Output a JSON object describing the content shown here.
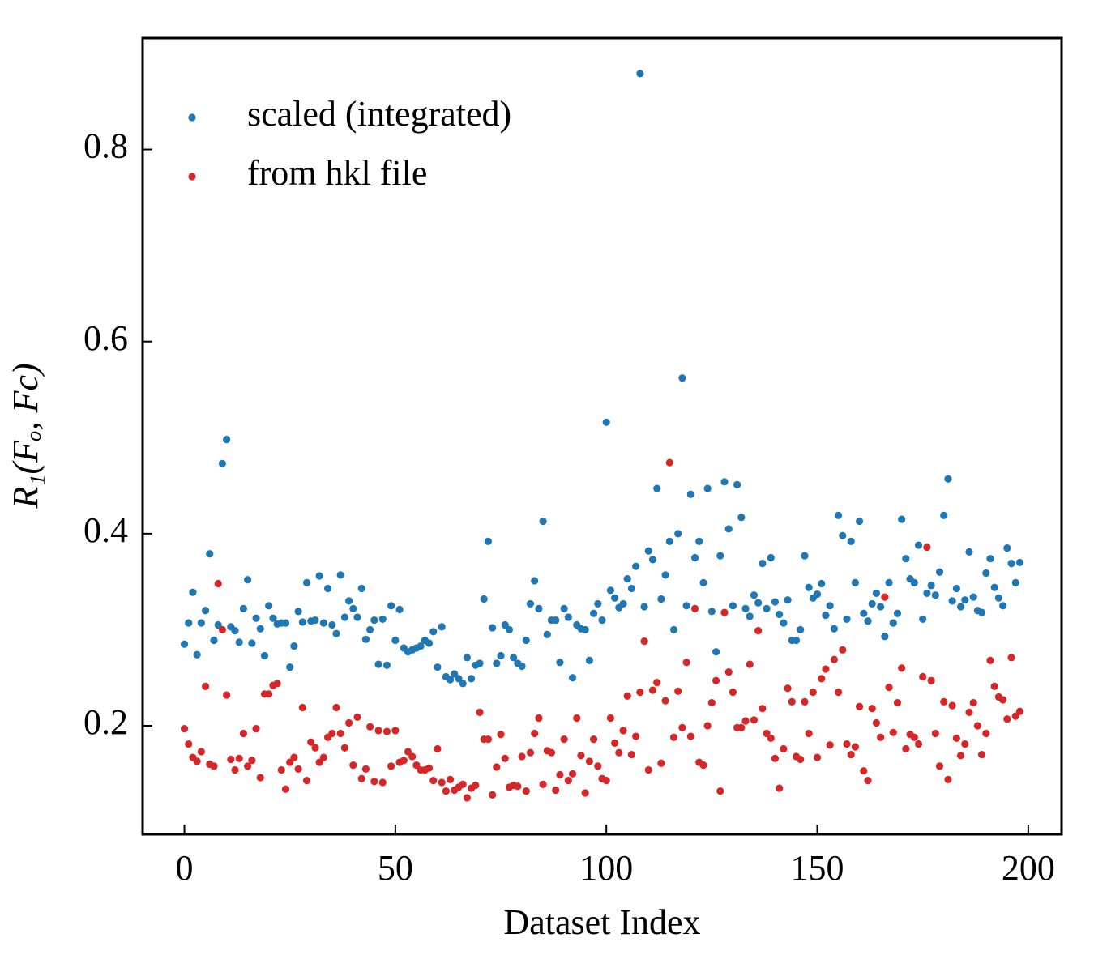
{
  "chart_data": {
    "type": "scatter",
    "xlabel": "Dataset Index",
    "ylabel": "R₁(Fₒ, Fc)",
    "xlim": [
      -9.9,
      207.9
    ],
    "ylim": [
      0.087,
      0.916
    ],
    "xticks": [
      0,
      50,
      100,
      150,
      200
    ],
    "yticks": [
      0.2,
      0.4,
      0.6,
      0.8
    ],
    "legend": "upper left",
    "x": [
      0,
      1,
      2,
      3,
      4,
      5,
      6,
      7,
      8,
      9,
      10,
      11,
      12,
      13,
      14,
      15,
      16,
      17,
      18,
      19,
      20,
      21,
      22,
      23,
      24,
      25,
      26,
      27,
      28,
      29,
      30,
      31,
      32,
      33,
      34,
      35,
      36,
      37,
      38,
      39,
      40,
      41,
      42,
      43,
      44,
      45,
      46,
      47,
      48,
      49,
      50,
      51,
      52,
      53,
      54,
      55,
      56,
      57,
      58,
      59,
      60,
      61,
      62,
      63,
      64,
      65,
      66,
      67,
      68,
      69,
      70,
      71,
      72,
      73,
      74,
      75,
      76,
      77,
      78,
      79,
      80,
      81,
      82,
      83,
      84,
      85,
      86,
      87,
      88,
      89,
      90,
      91,
      92,
      93,
      94,
      95,
      96,
      97,
      98,
      99,
      100,
      101,
      102,
      103,
      104,
      105,
      106,
      107,
      108,
      109,
      110,
      111,
      112,
      113,
      114,
      115,
      116,
      117,
      118,
      119,
      120,
      121,
      122,
      123,
      124,
      125,
      126,
      127,
      128,
      129,
      130,
      131,
      132,
      133,
      134,
      135,
      136,
      137,
      138,
      139,
      140,
      141,
      142,
      143,
      144,
      145,
      146,
      147,
      148,
      149,
      150,
      151,
      152,
      153,
      154,
      155,
      156,
      157,
      158,
      159,
      160,
      161,
      162,
      163,
      164,
      165,
      166,
      167,
      168,
      169,
      170,
      171,
      172,
      173,
      174,
      175,
      176,
      177,
      178,
      179,
      180,
      181,
      182,
      183,
      184,
      185,
      186,
      187,
      188,
      189,
      190,
      191,
      192,
      193,
      194,
      195,
      196,
      197,
      198
    ],
    "series": [
      {
        "name": "scaled (integrated)",
        "color": "#1f77b4",
        "values": [
          0.285,
          0.307,
          0.339,
          0.274,
          0.307,
          0.32,
          0.379,
          0.289,
          0.305,
          0.473,
          0.498,
          0.303,
          0.299,
          0.287,
          0.322,
          0.352,
          0.286,
          0.312,
          0.301,
          0.273,
          0.325,
          0.312,
          0.306,
          0.307,
          0.307,
          0.261,
          0.283,
          0.319,
          0.308,
          0.349,
          0.309,
          0.31,
          0.356,
          0.307,
          0.343,
          0.305,
          0.296,
          0.357,
          0.313,
          0.33,
          0.322,
          0.313,
          0.343,
          0.29,
          0.3,
          0.31,
          0.264,
          0.311,
          0.263,
          0.325,
          0.289,
          0.321,
          0.281,
          0.277,
          0.279,
          0.281,
          0.283,
          0.289,
          0.286,
          0.298,
          0.261,
          0.303,
          0.251,
          0.248,
          0.254,
          0.249,
          0.244,
          0.271,
          0.249,
          0.263,
          0.265,
          0.332,
          0.392,
          0.302,
          0.265,
          0.273,
          0.305,
          0.3,
          0.271,
          0.265,
          0.262,
          0.289,
          0.327,
          0.351,
          0.322,
          0.413,
          0.295,
          0.31,
          0.31,
          0.266,
          0.322,
          0.313,
          0.25,
          0.305,
          0.301,
          0.3,
          0.268,
          0.317,
          0.327,
          0.31,
          0.516,
          0.341,
          0.333,
          0.323,
          0.327,
          0.353,
          0.343,
          0.366,
          0.879,
          0.324,
          0.382,
          0.373,
          0.447,
          0.332,
          0.357,
          0.392,
          0.3,
          0.4,
          0.562,
          0.325,
          0.441,
          0.375,
          0.392,
          0.349,
          0.447,
          0.319,
          0.277,
          0.377,
          0.454,
          0.405,
          0.325,
          0.451,
          0.417,
          0.322,
          0.314,
          0.336,
          0.328,
          0.369,
          0.322,
          0.375,
          0.329,
          0.316,
          0.307,
          0.331,
          0.289,
          0.289,
          0.3,
          0.377,
          0.344,
          0.333,
          0.337,
          0.348,
          0.315,
          0.325,
          0.301,
          0.419,
          0.398,
          0.311,
          0.392,
          0.349,
          0.413,
          0.317,
          0.309,
          0.327,
          0.338,
          0.324,
          0.293,
          0.349,
          0.307,
          0.317,
          0.415,
          0.374,
          0.353,
          0.349,
          0.388,
          0.311,
          0.338,
          0.346,
          0.336,
          0.36,
          0.419,
          0.457,
          0.33,
          0.343,
          0.324,
          0.331,
          0.381,
          0.334,
          0.32,
          0.318,
          0.359,
          0.374,
          0.344,
          0.333,
          0.325,
          0.385,
          0.369,
          0.349,
          0.37
        ]
      },
      {
        "name": "from hkl file",
        "color": "#d62728",
        "values": [
          0.197,
          0.181,
          0.167,
          0.163,
          0.173,
          0.241,
          0.16,
          0.158,
          0.348,
          0.3,
          0.232,
          0.165,
          0.154,
          0.166,
          0.192,
          0.158,
          0.164,
          0.197,
          0.146,
          0.233,
          0.233,
          0.242,
          0.244,
          0.154,
          0.134,
          0.162,
          0.167,
          0.155,
          0.219,
          0.143,
          0.183,
          0.177,
          0.162,
          0.167,
          0.188,
          0.192,
          0.219,
          0.192,
          0.177,
          0.203,
          0.159,
          0.209,
          0.145,
          0.155,
          0.199,
          0.142,
          0.195,
          0.141,
          0.194,
          0.158,
          0.195,
          0.162,
          0.164,
          0.173,
          0.168,
          0.159,
          0.154,
          0.154,
          0.156,
          0.143,
          0.176,
          0.141,
          0.132,
          0.144,
          0.133,
          0.136,
          0.139,
          0.125,
          0.135,
          0.138,
          0.214,
          0.186,
          0.186,
          0.128,
          0.157,
          0.191,
          0.166,
          0.136,
          0.138,
          0.137,
          0.168,
          0.132,
          0.172,
          0.192,
          0.208,
          0.139,
          0.174,
          0.172,
          0.133,
          0.149,
          0.186,
          0.143,
          0.15,
          0.208,
          0.169,
          0.13,
          0.163,
          0.186,
          0.158,
          0.145,
          0.143,
          0.208,
          0.182,
          0.172,
          0.195,
          0.231,
          0.17,
          0.189,
          0.235,
          0.288,
          0.154,
          0.237,
          0.245,
          0.161,
          0.226,
          0.474,
          0.188,
          0.236,
          0.198,
          0.266,
          0.189,
          0.322,
          0.162,
          0.159,
          0.2,
          0.224,
          0.247,
          0.132,
          0.318,
          0.256,
          0.235,
          0.198,
          0.198,
          0.205,
          0.264,
          0.206,
          0.299,
          0.218,
          0.192,
          0.187,
          0.166,
          0.135,
          0.176,
          0.239,
          0.225,
          0.168,
          0.165,
          0.225,
          0.192,
          0.235,
          0.167,
          0.249,
          0.259,
          0.18,
          0.269,
          0.235,
          0.279,
          0.181,
          0.17,
          0.178,
          0.22,
          0.153,
          0.143,
          0.218,
          0.203,
          0.188,
          0.334,
          0.24,
          0.193,
          0.224,
          0.26,
          0.176,
          0.191,
          0.188,
          0.181,
          0.251,
          0.386,
          0.247,
          0.192,
          0.158,
          0.225,
          0.144,
          0.221,
          0.187,
          0.169,
          0.181,
          0.214,
          0.224,
          0.2,
          0.17,
          0.192,
          0.268,
          0.241,
          0.23,
          0.227,
          0.207,
          0.271,
          0.21,
          0.215
        ]
      }
    ]
  }
}
